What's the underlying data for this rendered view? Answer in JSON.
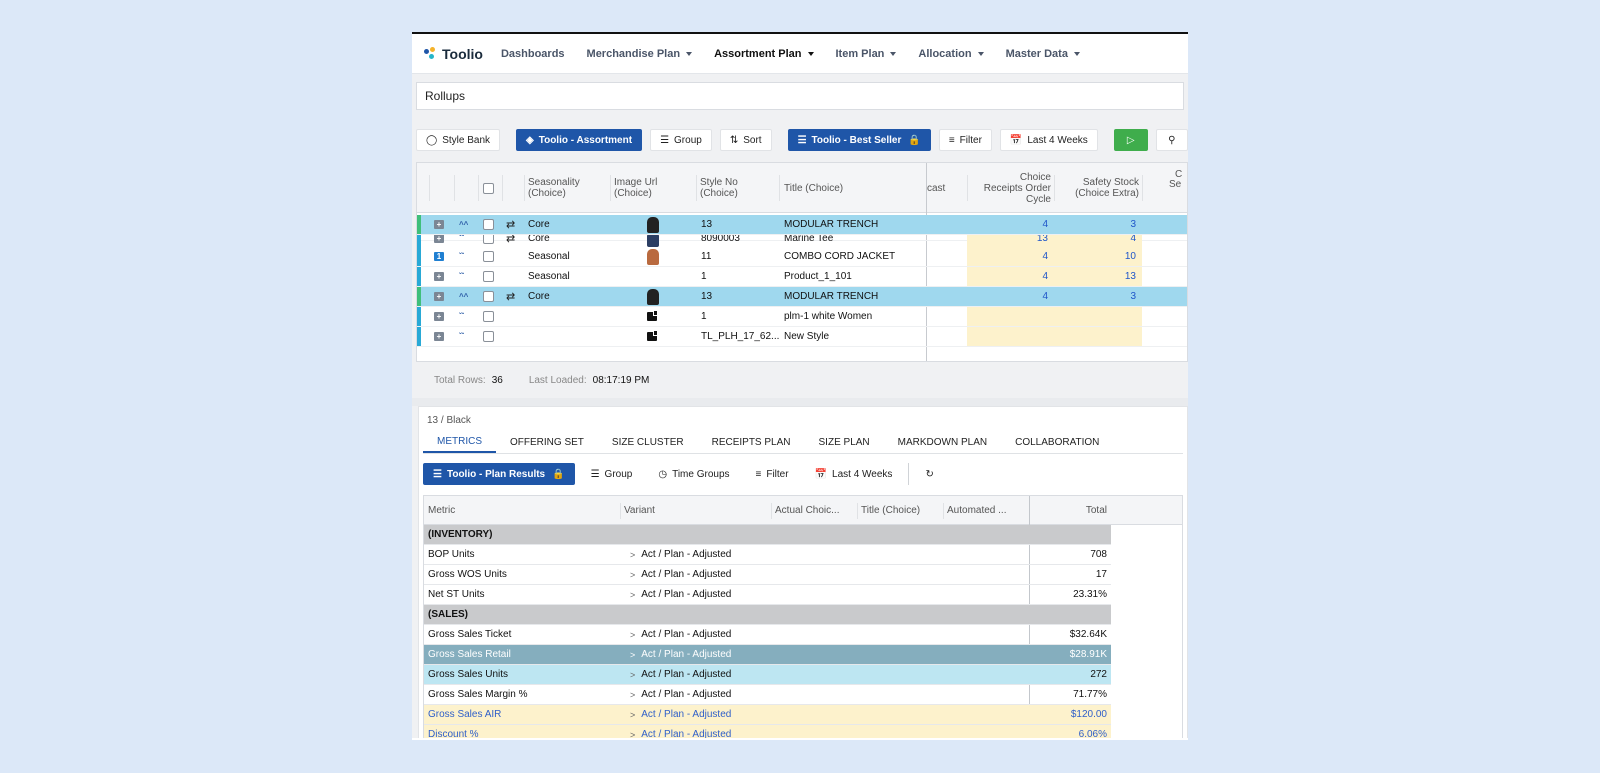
{
  "app": {
    "name": "Toolio"
  },
  "colors": {
    "brand_blue": "#1f56a8",
    "green": "#3fad4c",
    "highlight": "#9fd8ee",
    "yellow": "#fdf2cc",
    "bg": "#dce8f8"
  },
  "nav": {
    "items": [
      {
        "label": "Dashboards"
      },
      {
        "label": "Merchandise Plan"
      },
      {
        "label": "Assortment Plan"
      },
      {
        "label": "Item Plan"
      },
      {
        "label": "Allocation"
      },
      {
        "label": "Master Data"
      }
    ]
  },
  "rollups": {
    "label": "Rollups"
  },
  "toolbar": {
    "style_bank": "Style Bank",
    "assortment": "Toolio - Assortment",
    "group": "Group",
    "sort": "Sort",
    "view": "Toolio - Best Seller",
    "filter": "Filter",
    "period": "Last 4 Weeks",
    "extra": "C"
  },
  "grid": {
    "headers": {
      "seasonality": "Seasonality (Choice)",
      "image": "Image Url (Choice)",
      "style_no": "Style No (Choice)",
      "title": "Title (Choice)",
      "forecast": "cast",
      "receipts": "Choice Receipts Order Cycle",
      "safety": "Safety Stock (Choice Extra)",
      "next1": "C",
      "next2": "Se"
    },
    "rows": [
      {
        "season": "Core",
        "style": "13",
        "title": "MODULAR TRENCH",
        "v1": "4",
        "v2": "3"
      },
      {
        "season": "Core",
        "style": "8090003",
        "title": "Marine Tee",
        "v1": "13",
        "v2": "4"
      },
      {
        "season": "Seasonal",
        "style": "11",
        "title": "COMBO CORD JACKET",
        "v1": "4",
        "v2": "10"
      },
      {
        "season": "Seasonal",
        "style": "1",
        "title": "Product_1_101",
        "v1": "4",
        "v2": "13"
      },
      {
        "season": "Core",
        "style": "13",
        "title": "MODULAR TRENCH",
        "v1": "4",
        "v2": "3"
      },
      {
        "season": "",
        "style": "1",
        "title": "plm-1 white Women",
        "v1": "",
        "v2": ""
      },
      {
        "season": "",
        "style": "TL_PLH_17_62...",
        "title": "New Style",
        "v1": "",
        "v2": ""
      }
    ]
  },
  "footer": {
    "total_rows_label": "Total Rows:",
    "total_rows": "36",
    "last_loaded_label": "Last Loaded:",
    "last_loaded": "08:17:19 PM"
  },
  "detail": {
    "breadcrumb": "13 / Black",
    "tabs": [
      "METRICS",
      "OFFERING SET",
      "SIZE CLUSTER",
      "RECEIPTS PLAN",
      "SIZE PLAN",
      "MARKDOWN PLAN",
      "COLLABORATION"
    ],
    "toolbar": {
      "view": "Toolio - Plan Results",
      "group": "Group",
      "time_groups": "Time Groups",
      "filter": "Filter",
      "period": "Last 4 Weeks"
    },
    "columns": {
      "metric": "Metric",
      "variant": "Variant",
      "actual": "Actual Choic...",
      "title": "Title (Choice)",
      "automated": "Automated ...",
      "total": "Total"
    },
    "rows": [
      {
        "metric": "(INVENTORY)",
        "variant": "",
        "total": ""
      },
      {
        "metric": "BOP Units",
        "variant": "Act / Plan - Adjusted",
        "total": "708"
      },
      {
        "metric": "Gross WOS Units",
        "variant": "Act / Plan - Adjusted",
        "total": "17"
      },
      {
        "metric": "Net ST Units",
        "variant": "Act / Plan - Adjusted",
        "total": "23.31%"
      },
      {
        "metric": "(SALES)",
        "variant": "",
        "total": ""
      },
      {
        "metric": "Gross Sales Ticket",
        "variant": "Act / Plan - Adjusted",
        "total": "$32.64K"
      },
      {
        "metric": "Gross Sales Retail",
        "variant": "Act / Plan - Adjusted",
        "total": "$28.91K"
      },
      {
        "metric": "Gross Sales Units",
        "variant": "Act / Plan - Adjusted",
        "total": "272"
      },
      {
        "metric": "Gross Sales Margin %",
        "variant": "Act / Plan - Adjusted",
        "total": "71.77%"
      },
      {
        "metric": "Gross Sales AIR",
        "variant": "Act / Plan - Adjusted",
        "total": "$120.00"
      },
      {
        "metric": "Discount %",
        "variant": "Act / Plan - Adjusted",
        "total": "6.06%"
      }
    ]
  }
}
